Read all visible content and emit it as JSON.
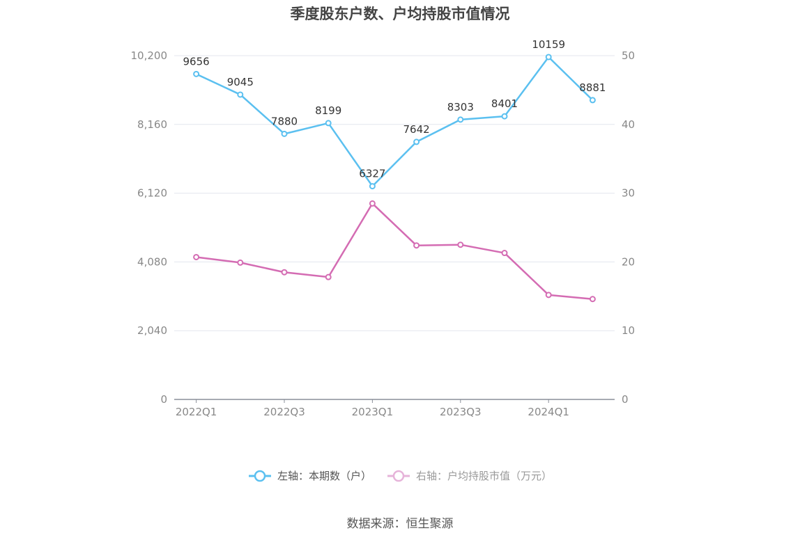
{
  "chart_data": {
    "type": "line",
    "title": "季度股东户数、户均持股市值情况",
    "categories": [
      "2022Q1",
      "2022Q2",
      "2022Q3",
      "2022Q4",
      "2023Q1",
      "2023Q2",
      "2023Q3",
      "2023Q4",
      "2024Q1",
      "2024Q2"
    ],
    "x_tick_labels": [
      "2022Q1",
      "2022Q3",
      "2023Q1",
      "2023Q3",
      "2024Q1"
    ],
    "y_left": {
      "ticks": [
        "0",
        "2,040",
        "4,080",
        "6,120",
        "8,160",
        "10,200"
      ],
      "ylim": [
        0,
        10200
      ]
    },
    "y_right": {
      "ticks": [
        "0",
        "10",
        "20",
        "30",
        "40",
        "50"
      ],
      "ylim": [
        0,
        50
      ]
    },
    "series": [
      {
        "name": "左轴：本期数（户）",
        "axis": "left",
        "color": "#5bc0f0",
        "values": [
          9656,
          9045,
          7880,
          8199,
          6327,
          7642,
          8303,
          8401,
          10159,
          8881
        ],
        "labels": [
          "9656",
          "9045",
          "7880",
          "8199",
          "6327",
          "7642",
          "8303",
          "8401",
          "10159",
          "8881"
        ]
      },
      {
        "name": "右轴：户均持股市值（万元）",
        "axis": "right",
        "color": "#d46cb3",
        "values": [
          20.7,
          19.9,
          18.5,
          17.8,
          28.5,
          22.4,
          22.5,
          21.3,
          15.2,
          14.6
        ]
      }
    ],
    "grid": true,
    "legend_position": "bottom",
    "source": "数据来源：恒生聚源"
  }
}
